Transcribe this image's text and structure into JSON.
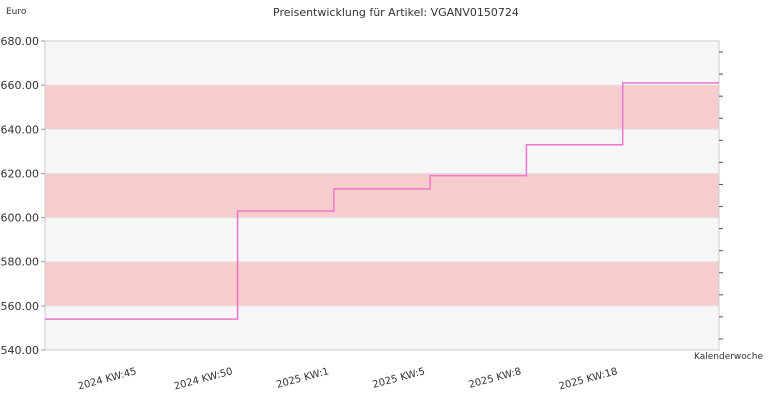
{
  "chart_data": {
    "type": "line",
    "step": true,
    "title": "Preisentwicklung für Artikel: VGANV0150724",
    "ylabel": "Euro",
    "xlabel": "Kalenderwoche",
    "ylim": [
      540,
      680
    ],
    "yticks": [
      540,
      560,
      580,
      600,
      620,
      640,
      660,
      680
    ],
    "ytick_labels": [
      "540.00",
      "560.00",
      "580.00",
      "600.00",
      "620.00",
      "640.00",
      "660.00",
      "680.00"
    ],
    "x_tick_labels": [
      "2024 KW:45",
      "2024 KW:50",
      "2025 KW:1",
      "2025 KW:5",
      "2025 KW:8",
      "2025 KW:18"
    ],
    "series": [
      {
        "values": [
          554,
          554,
          603,
          613,
          619,
          633,
          661,
          661
        ]
      }
    ],
    "band_colors": [
      "#f7cccc",
      "#f6f6f6"
    ],
    "line_color": "#ee77cc",
    "grid": true
  }
}
